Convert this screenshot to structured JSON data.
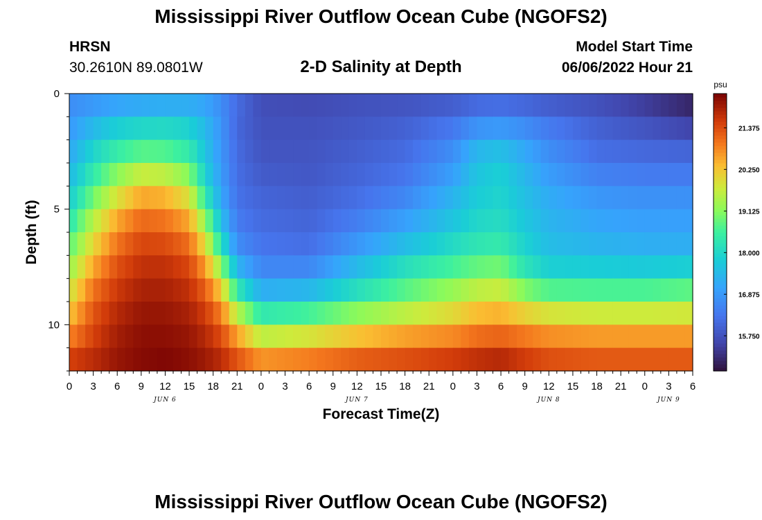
{
  "header": {
    "title": "Mississippi River Outflow Ocean Cube (NGOFS2)",
    "station": "HRSN",
    "coords": "30.2610N  89.0801W",
    "subtitle": "2-D Salinity at Depth",
    "model_start_label": "Model Start Time",
    "model_start_value": "06/06/2022 Hour 21"
  },
  "footer": {
    "title": "Mississippi River Outflow Ocean Cube (NGOFS2)"
  },
  "colors": {
    "low": "#30123b",
    "high": "#7a0403"
  },
  "chart_data": {
    "type": "heatmap",
    "title": "2-D Salinity at Depth",
    "xlabel": "Forecast Time(Z)",
    "ylabel": "Depth (ft)",
    "colorbar_label": "psu",
    "x_range_hours": [
      0,
      78
    ],
    "y_range_ft": [
      0,
      12
    ],
    "x_ticks": [
      {
        "h": 0,
        "label": "0"
      },
      {
        "h": 3,
        "label": "3"
      },
      {
        "h": 6,
        "label": "6"
      },
      {
        "h": 9,
        "label": "9"
      },
      {
        "h": 12,
        "label": "12"
      },
      {
        "h": 15,
        "label": "15"
      },
      {
        "h": 18,
        "label": "18"
      },
      {
        "h": 21,
        "label": "21"
      },
      {
        "h": 24,
        "label": "0"
      },
      {
        "h": 27,
        "label": "3"
      },
      {
        "h": 30,
        "label": "6"
      },
      {
        "h": 33,
        "label": "9"
      },
      {
        "h": 36,
        "label": "12"
      },
      {
        "h": 39,
        "label": "15"
      },
      {
        "h": 42,
        "label": "18"
      },
      {
        "h": 45,
        "label": "21"
      },
      {
        "h": 48,
        "label": "0"
      },
      {
        "h": 51,
        "label": "3"
      },
      {
        "h": 54,
        "label": "6"
      },
      {
        "h": 57,
        "label": "9"
      },
      {
        "h": 60,
        "label": "12"
      },
      {
        "h": 63,
        "label": "15"
      },
      {
        "h": 66,
        "label": "18"
      },
      {
        "h": 69,
        "label": "21"
      },
      {
        "h": 72,
        "label": "0"
      },
      {
        "h": 75,
        "label": "3"
      },
      {
        "h": 78,
        "label": "6"
      }
    ],
    "date_labels": [
      {
        "h": 12,
        "label": "JUN 6"
      },
      {
        "h": 36,
        "label": "JUN 7"
      },
      {
        "h": 60,
        "label": "JUN 8"
      },
      {
        "h": 75,
        "label": "JUN 9"
      }
    ],
    "y_ticks": [
      {
        "ft": 0,
        "label": "0"
      },
      {
        "ft": 5,
        "label": "5"
      },
      {
        "ft": 10,
        "label": "10"
      }
    ],
    "colorbar_ticks": [
      "15.750",
      "16.875",
      "18.000",
      "19.125",
      "20.250",
      "21.375"
    ],
    "colorbar_tick_values": [
      15.75,
      16.875,
      18.0,
      19.125,
      20.25,
      21.375
    ],
    "vmin": 14.8,
    "vmax": 22.3,
    "depth_layers": 12,
    "keyframe_hours": [
      0,
      3,
      6,
      9,
      12,
      15,
      17,
      19,
      21,
      24,
      30,
      36,
      42,
      48,
      51,
      54,
      57,
      60,
      66,
      72,
      78
    ],
    "keyframes_by_layer": [
      [
        16.6,
        16.6,
        16.6,
        16.7,
        16.7,
        16.8,
        16.8,
        16.6,
        16.2,
        15.7,
        15.6,
        15.7,
        15.7,
        15.8,
        15.9,
        15.9,
        15.8,
        15.7,
        15.6,
        15.3,
        15.0
      ],
      [
        16.8,
        17.2,
        17.6,
        17.7,
        17.8,
        17.7,
        17.4,
        16.8,
        16.1,
        15.7,
        15.7,
        15.8,
        15.9,
        16.1,
        16.4,
        16.5,
        16.4,
        16.2,
        15.9,
        15.6,
        15.2
      ],
      [
        17.0,
        17.7,
        18.1,
        18.3,
        18.3,
        18.1,
        17.5,
        16.8,
        16.1,
        15.8,
        15.8,
        15.9,
        16.1,
        16.6,
        17.2,
        17.3,
        17.0,
        16.6,
        16.1,
        16.0,
        15.9
      ],
      [
        17.3,
        18.2,
        18.8,
        19.2,
        19.1,
        18.7,
        17.8,
        16.9,
        16.2,
        15.8,
        15.8,
        16.0,
        16.2,
        16.8,
        17.6,
        17.8,
        17.3,
        16.8,
        16.3,
        16.2,
        16.2
      ],
      [
        17.6,
        18.6,
        19.5,
        20.2,
        20.1,
        19.5,
        18.0,
        17.0,
        16.2,
        16.0,
        15.9,
        16.1,
        16.4,
        17.2,
        17.7,
        17.9,
        17.5,
        17.1,
        16.7,
        16.6,
        16.6
      ],
      [
        18.0,
        19.3,
        20.3,
        20.9,
        20.8,
        20.3,
        18.8,
        17.3,
        16.3,
        16.1,
        16.0,
        16.3,
        16.8,
        17.5,
        17.9,
        18.0,
        17.6,
        17.3,
        17.0,
        16.9,
        16.9
      ],
      [
        18.5,
        19.8,
        20.8,
        21.3,
        21.2,
        20.8,
        19.6,
        17.8,
        16.5,
        16.2,
        16.1,
        16.6,
        17.2,
        17.8,
        18.1,
        18.2,
        17.8,
        17.4,
        17.2,
        17.1,
        17.1
      ],
      [
        19.0,
        20.3,
        21.2,
        21.6,
        21.6,
        21.3,
        20.3,
        18.6,
        16.9,
        16.4,
        16.3,
        17.1,
        17.8,
        18.3,
        18.5,
        18.6,
        18.0,
        17.6,
        17.5,
        17.4,
        17.4
      ],
      [
        19.5,
        20.8,
        21.5,
        21.8,
        21.8,
        21.6,
        21.0,
        19.8,
        17.8,
        16.8,
        16.9,
        17.8,
        18.5,
        18.9,
        19.2,
        19.3,
        18.5,
        18.1,
        18.1,
        18.1,
        18.3
      ],
      [
        20.0,
        21.2,
        21.7,
        22.0,
        22.0,
        21.8,
        21.4,
        20.6,
        18.9,
        17.7,
        17.9,
        18.5,
        19.0,
        19.6,
        20.0,
        20.1,
        19.6,
        19.3,
        19.2,
        19.2,
        19.3
      ],
      [
        20.5,
        21.4,
        21.9,
        22.1,
        22.1,
        22.0,
        21.7,
        21.2,
        20.2,
        19.0,
        19.3,
        19.8,
        20.2,
        20.4,
        20.7,
        20.8,
        20.6,
        20.4,
        20.3,
        20.3,
        20.3
      ],
      [
        21.2,
        21.6,
        22.0,
        22.2,
        22.2,
        22.1,
        21.9,
        21.6,
        21.0,
        20.2,
        20.4,
        20.8,
        21.0,
        21.2,
        21.4,
        21.5,
        21.3,
        21.1,
        21.0,
        21.0,
        21.0
      ],
      [
        21.8,
        21.9,
        22.1,
        22.2,
        22.3,
        22.2,
        22.1,
        21.9,
        21.6,
        21.2,
        21.4,
        21.6,
        21.7,
        21.9,
        22.0,
        22.1,
        21.8,
        21.6,
        21.5,
        21.5,
        21.5
      ]
    ]
  }
}
